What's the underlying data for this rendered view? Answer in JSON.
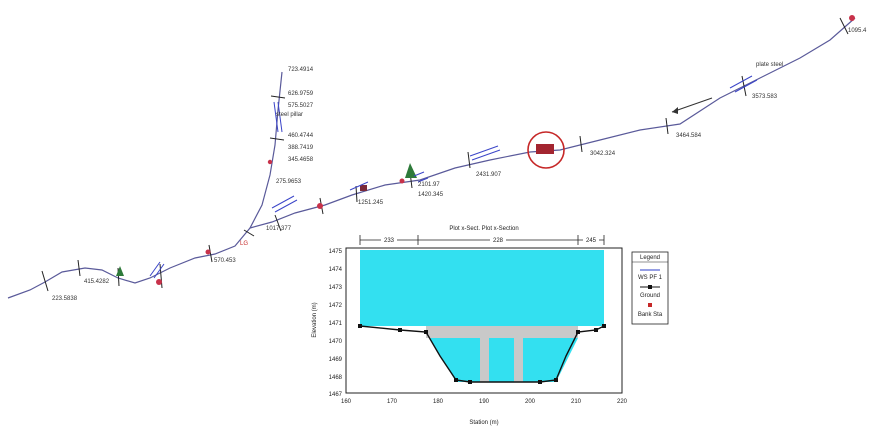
{
  "plan": {
    "chainage_labels": [
      "223.5838",
      "415.4282",
      "723.4914",
      "626.9759",
      "575.5027",
      "460.4744",
      "388.7419",
      "345.4658",
      "275.9653",
      "570.453",
      "1017.377",
      "1251.245",
      "1420.345",
      "2101.97",
      "2431.907",
      "3042.324",
      "3464.584",
      "3573.583",
      "1095.4"
    ],
    "structure_labels": [
      "steel pillar",
      "plate steel"
    ],
    "marker": "LG"
  },
  "section": {
    "title": "Plot x-Sect.  Plot x-Section",
    "dims": [
      "233",
      "228",
      "245"
    ],
    "ylabel": "Elevation (m)",
    "xlabel": "Station (m)",
    "y_ticks": [
      "1475",
      "1474",
      "1473",
      "1472",
      "1471",
      "1470",
      "1469",
      "1468",
      "1467"
    ],
    "x_ticks": [
      "160",
      "170",
      "180",
      "190",
      "200",
      "210",
      "220"
    ],
    "legend": {
      "title": "Legend",
      "items": [
        "WS PF 1",
        "Ground",
        "Bank Sta"
      ]
    },
    "colors": {
      "water": "#33e0f0",
      "bridge": "#c9c9c9",
      "ground": "#111111"
    }
  }
}
